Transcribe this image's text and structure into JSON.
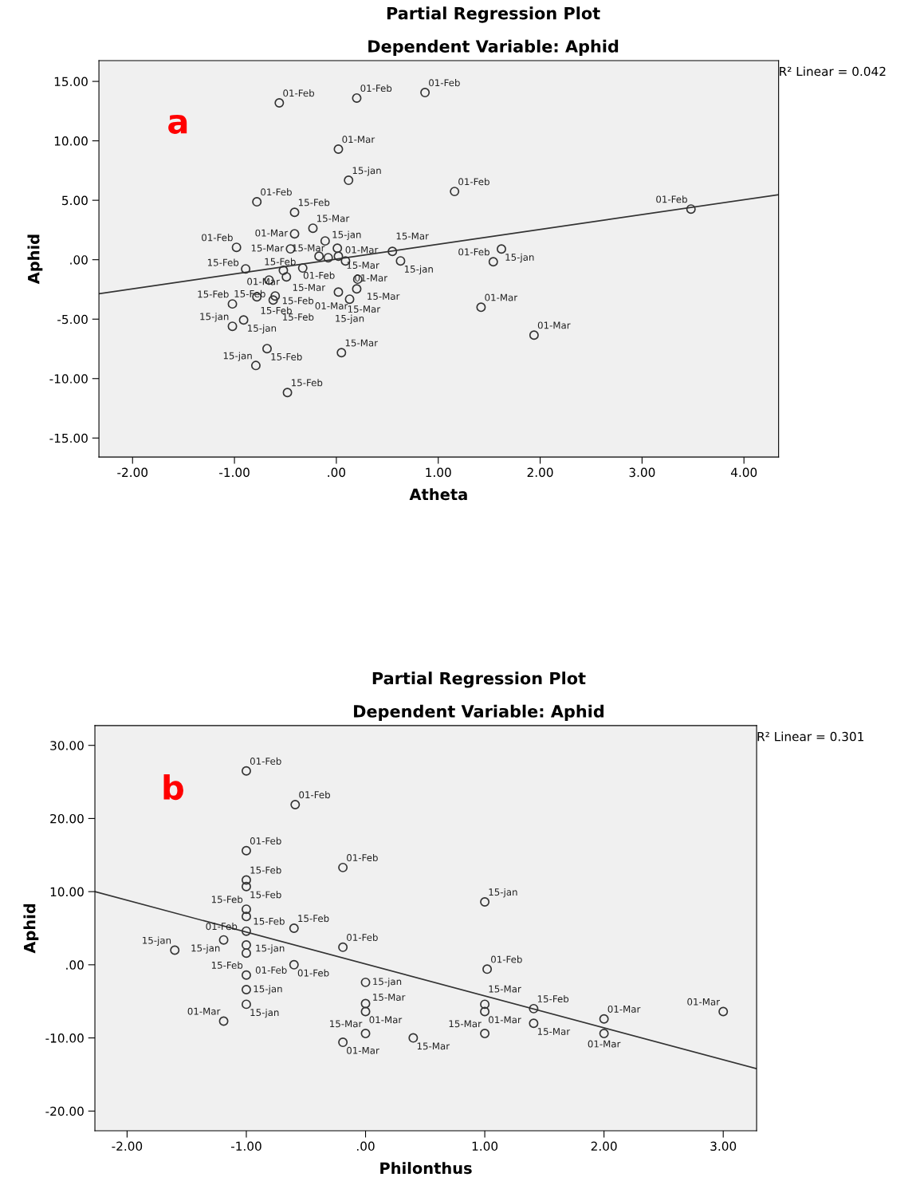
{
  "chart_data": [
    {
      "type": "scatter",
      "title": "Partial Regression Plot",
      "subtitle": "Dependent Variable: Aphid",
      "xlabel": "Atheta",
      "ylabel": "Aphid",
      "annotations": [
        "R² Linear = 0.042",
        "a"
      ],
      "grid": false,
      "xlim": [
        -2.33,
        4.34
      ],
      "ylim": [
        -16.6,
        16.75
      ],
      "xticks": [
        {
          "value": -2,
          "label": "-2.00"
        },
        {
          "value": -1,
          "label": "-1.00"
        },
        {
          "value": 0,
          "label": ".00"
        },
        {
          "value": 1,
          "label": "1.00"
        },
        {
          "value": 2,
          "label": "2.00"
        },
        {
          "value": 3,
          "label": "3.00"
        },
        {
          "value": 4,
          "label": "4.00"
        }
      ],
      "yticks": [
        {
          "value": -15,
          "label": "-15.00"
        },
        {
          "value": -10,
          "label": "-10.00"
        },
        {
          "value": -5,
          "label": "-5.00"
        },
        {
          "value": 0,
          "label": ".00"
        },
        {
          "value": 5,
          "label": "5.00"
        },
        {
          "value": 10,
          "label": "10.00"
        },
        {
          "value": 15,
          "label": "15.00"
        }
      ],
      "series": [
        {
          "marker": "circle",
          "color": "#333333",
          "x": [
            -0.56,
            0.2,
            0.87,
            0.02,
            0.12,
            -0.78,
            1.16,
            3.48,
            -0.41,
            -0.23,
            -0.41,
            -0.98,
            -0.45,
            -0.11,
            0.01,
            -0.17,
            -0.08,
            0.02,
            0.09,
            0.55,
            0.63,
            1.62,
            1.54,
            -0.89,
            -0.52,
            -0.33,
            -0.49,
            -0.66,
            0.21,
            0.2,
            0.02,
            -0.78,
            -0.6,
            -0.62,
            0.13,
            -1.02,
            -0.91,
            -1.02,
            -0.68,
            -0.79,
            0.05,
            -0.48,
            1.42,
            1.94
          ],
          "values": [
            13.19,
            13.6,
            14.06,
            9.3,
            6.68,
            4.87,
            5.74,
            4.26,
            3.99,
            2.65,
            2.18,
            1.04,
            0.91,
            1.58,
            0.97,
            0.3,
            0.17,
            0.3,
            -0.1,
            0.7,
            -0.1,
            0.9,
            -0.17,
            -0.77,
            -0.9,
            -0.7,
            -1.44,
            -1.71,
            -1.64,
            -2.45,
            -2.72,
            -3.12,
            -3.05,
            -3.39,
            -3.32,
            -3.72,
            -5.07,
            -5.6,
            -7.48,
            -8.9,
            -7.82,
            -11.17,
            -4.0,
            -6.34
          ],
          "value_labels": [
            "01-Feb",
            "01-Feb",
            "01-Feb",
            "01-Mar",
            "15-jan",
            "01-Feb",
            "01-Feb",
            "01-Feb",
            "15-Feb",
            "15-Mar",
            "01-Mar",
            "01-Feb",
            "15-Mar",
            "15-jan",
            "15-Mar",
            "01-Feb",
            "15-Mar",
            "01-Mar",
            "01-Mar",
            "15-Mar",
            "15-jan",
            "15-jan",
            "01-Feb",
            "15-Feb",
            "15-Mar",
            "15-Feb",
            "01-Mar",
            "15-Feb",
            "15-Mar",
            "01-Mar",
            "15-Mar",
            "15-Feb",
            "15-Feb",
            "15-Feb",
            "15-jan",
            "15-Feb",
            "15-jan",
            "15-jan",
            "15-Feb",
            "15-jan",
            "15-Mar",
            "15-Feb",
            "01-Mar",
            "01-Mar"
          ]
        },
        {
          "type": "line",
          "color": "#333333",
          "x": [
            -2.33,
            4.34
          ],
          "values": [
            -2.86,
            5.47
          ]
        }
      ]
    },
    {
      "type": "scatter",
      "title": "Partial Regression Plot",
      "subtitle": "Dependent Variable: Aphid",
      "xlabel": "Philonthus",
      "ylabel": "Aphid",
      "annotations": [
        "R² Linear = 0.301",
        "b"
      ],
      "grid": false,
      "xlim": [
        -2.27,
        3.28
      ],
      "ylim": [
        -22.7,
        32.7
      ],
      "xticks": [
        {
          "value": -2,
          "label": "-2.00"
        },
        {
          "value": -1,
          "label": "-1.00"
        },
        {
          "value": 0,
          "label": ".00"
        },
        {
          "value": 1,
          "label": "1.00"
        },
        {
          "value": 2,
          "label": "2.00"
        },
        {
          "value": 3,
          "label": "3.00"
        }
      ],
      "yticks": [
        {
          "value": -20,
          "label": "-20.00"
        },
        {
          "value": -10,
          "label": "-10.00"
        },
        {
          "value": 0,
          "label": ".00"
        },
        {
          "value": 10,
          "label": "10.00"
        },
        {
          "value": 20,
          "label": "20.00"
        },
        {
          "value": 30,
          "label": "30.00"
        }
      ],
      "series": [
        {
          "marker": "circle",
          "color": "#333333",
          "x": [
            -1.0,
            -0.59,
            -1.0,
            -0.19,
            -1.0,
            -1.0,
            -1.0,
            -1.0,
            -0.6,
            -1.0,
            -1.19,
            -1.6,
            -1.0,
            -1.0,
            -0.19,
            -0.6,
            -1.0,
            -1.0,
            -1.0,
            -1.19,
            0.0,
            0.0,
            0.0,
            0.0,
            -0.19,
            1.0,
            1.02,
            1.0,
            1.0,
            1.0,
            1.41,
            1.41,
            2.0,
            2.0,
            3.0,
            0.4
          ],
          "values": [
            26.5,
            21.9,
            15.6,
            13.3,
            11.6,
            10.7,
            7.6,
            6.6,
            5.0,
            4.6,
            3.4,
            2.0,
            2.7,
            1.6,
            2.4,
            0.0,
            -1.4,
            -3.4,
            -5.4,
            -7.7,
            -2.4,
            -5.3,
            -6.4,
            -9.4,
            -10.6,
            8.6,
            -0.6,
            -5.4,
            -6.4,
            -9.4,
            -6.0,
            -8.0,
            -7.4,
            -9.4,
            -6.4,
            -10.0
          ],
          "value_labels": [
            "01-Feb",
            "01-Feb",
            "01-Feb",
            "01-Feb",
            "15-Feb",
            "15-Feb",
            "15-Feb",
            "15-Feb",
            "15-Feb",
            "15-jan",
            "15-jan",
            "15-jan",
            "01-Feb",
            "01-Feb",
            "01-Feb",
            "01-Feb",
            "15-Feb",
            "15-jan",
            "15-jan",
            "01-Mar",
            "15-jan",
            "15-Mar",
            "01-Mar",
            "15-Mar",
            "01-Mar",
            "15-jan",
            "01-Feb",
            "15-Mar",
            "01-Mar",
            "15-Mar",
            "15-Feb",
            "15-Mar",
            "01-Mar",
            "01-Mar",
            "01-Mar",
            "15-Mar"
          ]
        },
        {
          "type": "line",
          "color": "#333333",
          "x": [
            -2.27,
            3.28
          ],
          "values": [
            10.0,
            -14.2
          ]
        }
      ]
    }
  ]
}
